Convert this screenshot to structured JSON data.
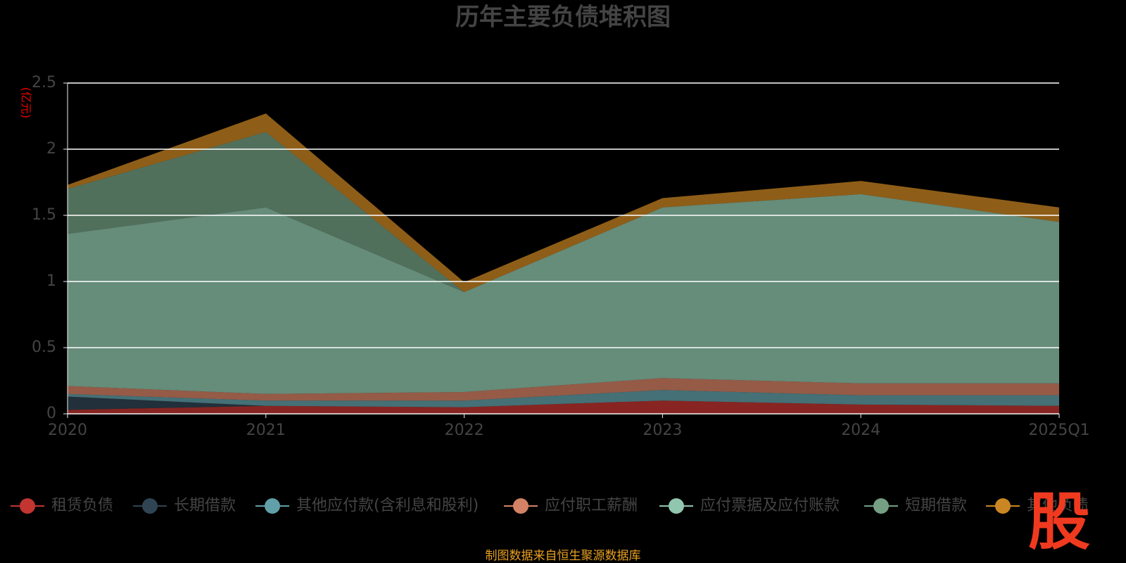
{
  "chart_data": {
    "type": "stacked_area",
    "title": "历年主要负债堆积图",
    "y_unit": "(亿元)",
    "categories": [
      "2020",
      "2021",
      "2022",
      "2023",
      "2024",
      "2025Q1"
    ],
    "ylim": [
      0,
      2.5
    ],
    "yticks": [
      0,
      0.5,
      1,
      1.5,
      2,
      2.5
    ],
    "grid": true,
    "series": [
      {
        "name": "租赁负债",
        "color": "#c23531",
        "values": [
          0.03,
          0.06,
          0.05,
          0.1,
          0.07,
          0.06
        ]
      },
      {
        "name": "长期借款",
        "color": "#2f4554",
        "values": [
          0.1,
          0,
          0,
          0,
          0,
          0
        ]
      },
      {
        "name": "其他应付款(含利息和股利)",
        "color": "#61a0a8",
        "values": [
          0.02,
          0.04,
          0.05,
          0.08,
          0.07,
          0.08
        ]
      },
      {
        "name": "应付职工薪酬",
        "color": "#d48265",
        "values": [
          0.06,
          0.05,
          0.065,
          0.09,
          0.09,
          0.09
        ]
      },
      {
        "name": "应付票据及应付账款",
        "color": "#91c7ae",
        "values": [
          1.15,
          1.41,
          0.755,
          1.29,
          1.43,
          1.22
        ]
      },
      {
        "name": "短期借款",
        "color": "#749f83",
        "values": [
          0.34,
          0.57,
          0,
          0,
          0,
          0
        ]
      },
      {
        "name": "其他负债",
        "color": "#ca8622",
        "values": [
          0.03,
          0.14,
          0.075,
          0.07,
          0.1,
          0.11
        ]
      }
    ],
    "source": "制图数据来自恒生聚源数据库",
    "watermark": "股"
  }
}
